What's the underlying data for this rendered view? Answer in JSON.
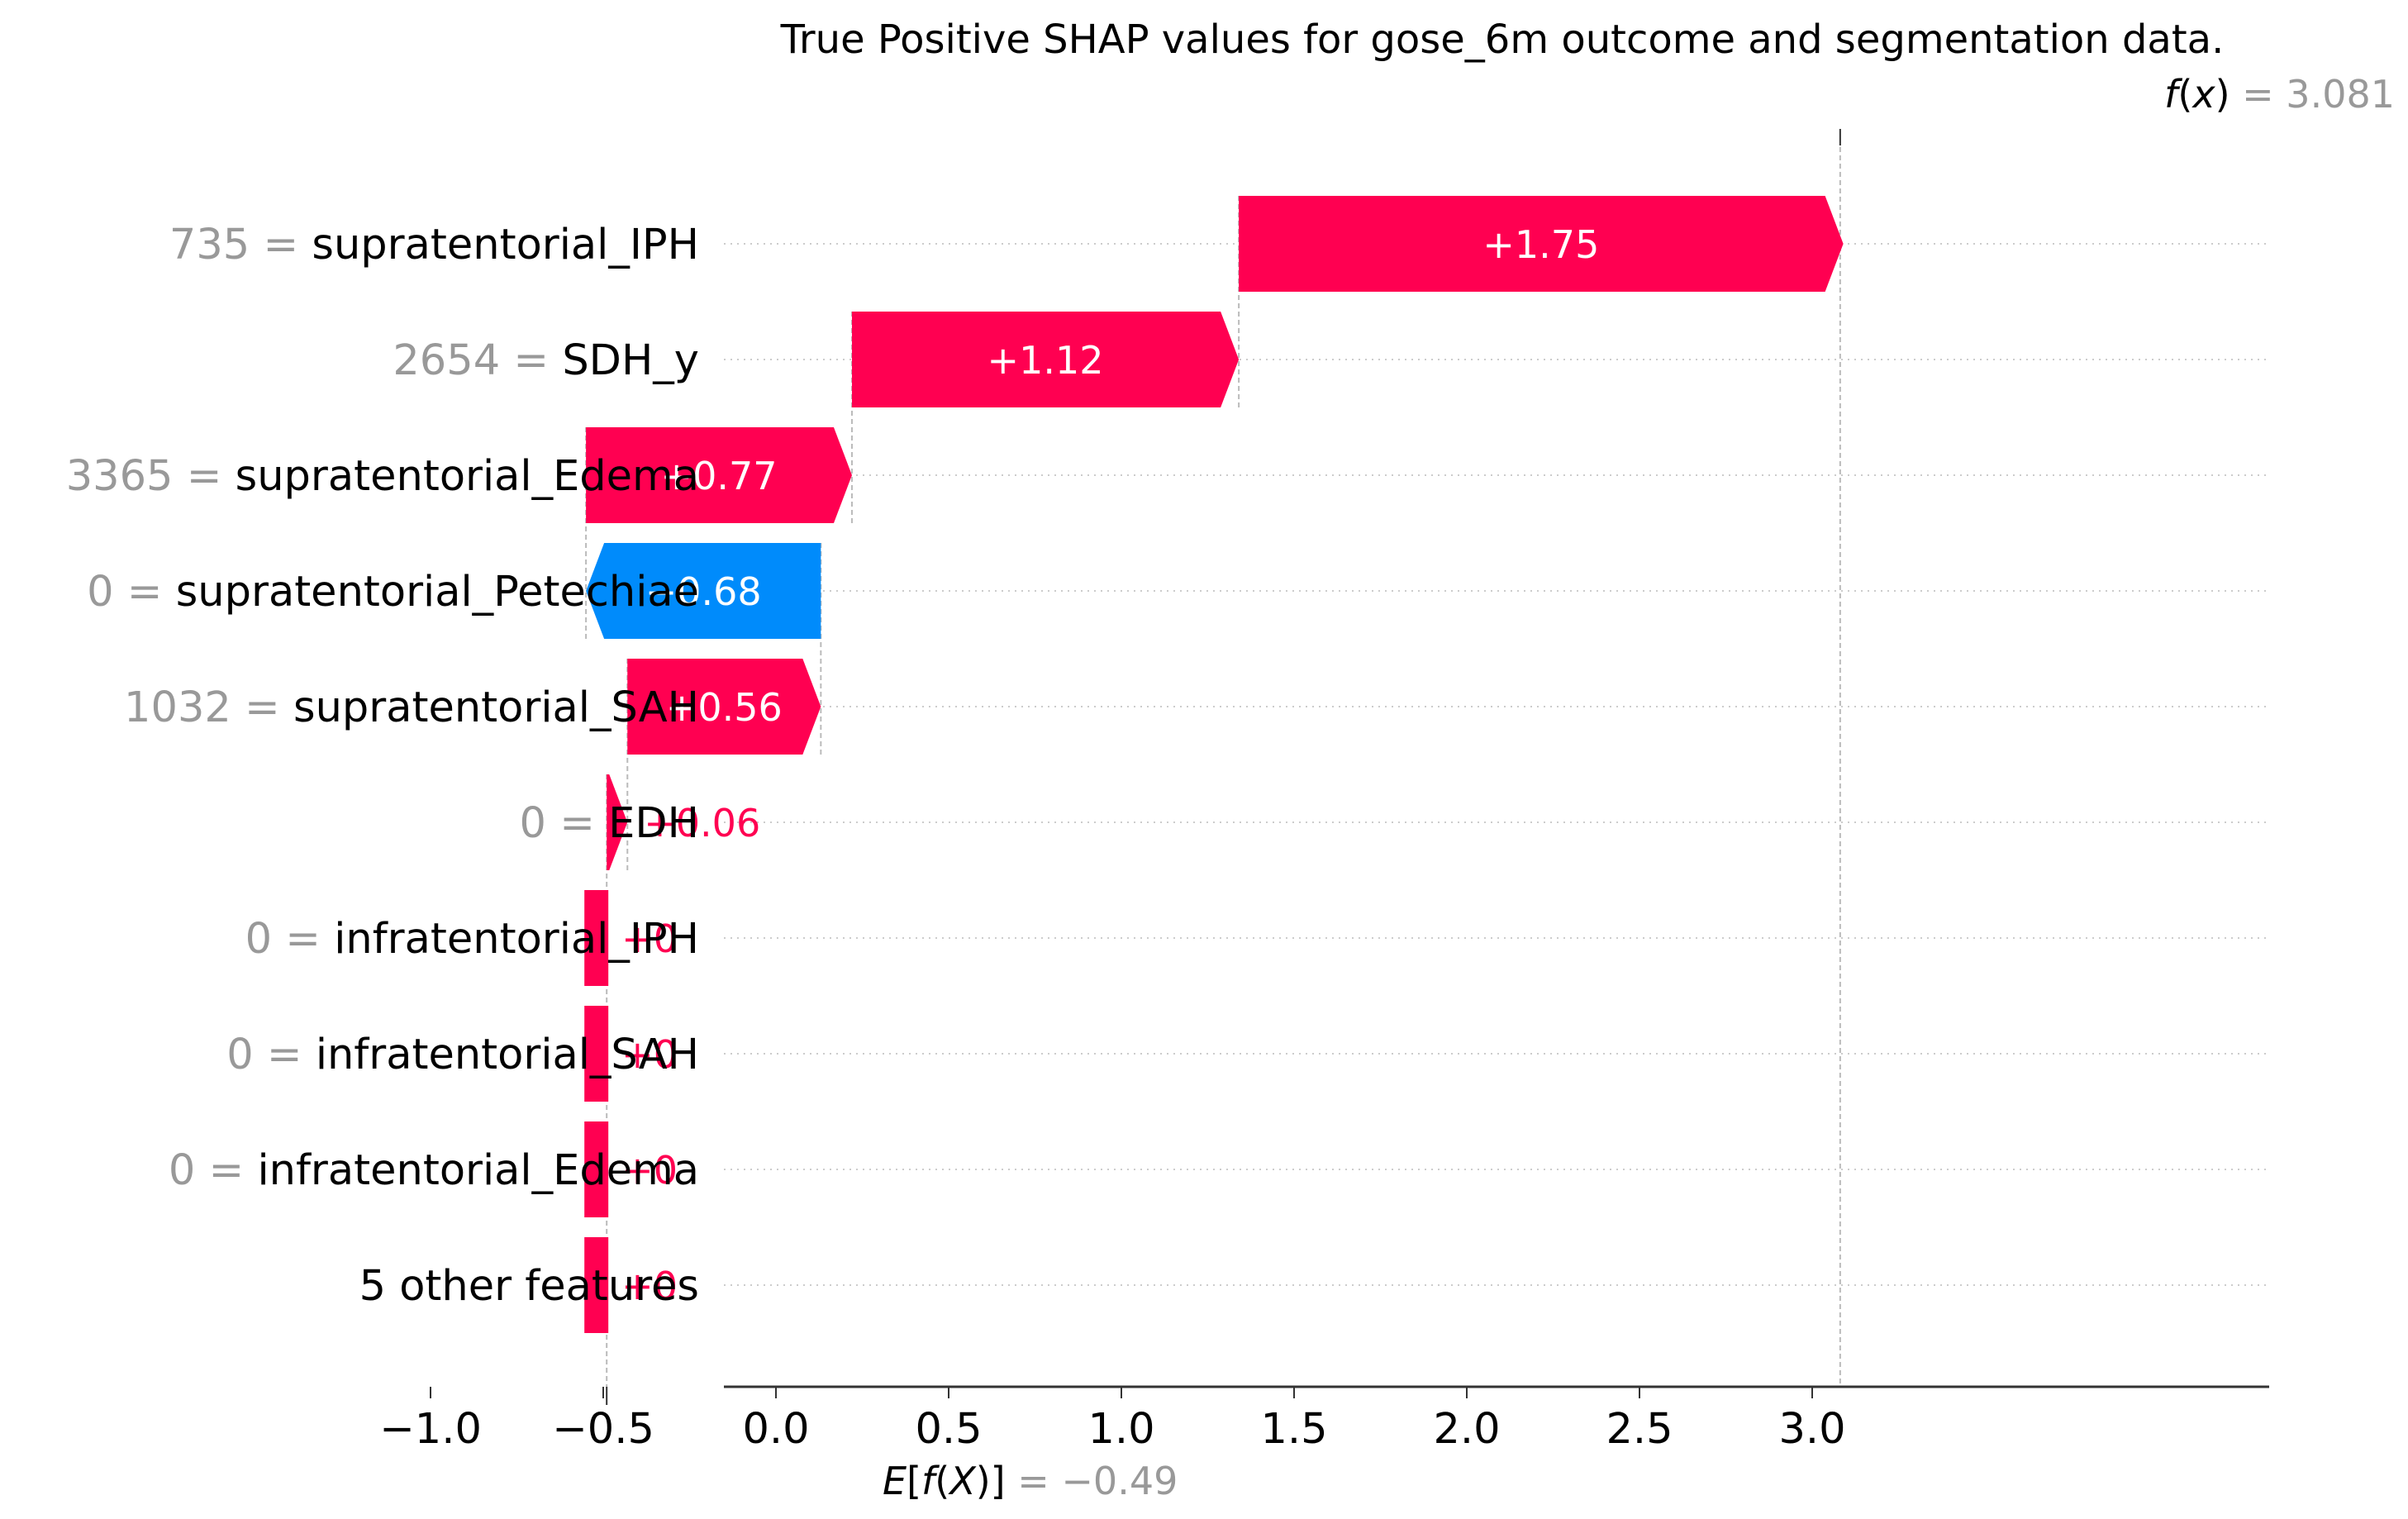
{
  "chart_data": {
    "type": "waterfall",
    "title": "True Positive SHAP values for gose_6m outcome and segmentation data.",
    "base_value": -0.49,
    "base_label_text": "= −0.49",
    "output_value": 3.081,
    "output_label_text": "= 3.081",
    "xlim": [
      -1.15,
      3.3
    ],
    "xticks": [
      -1.0,
      -0.5,
      0.0,
      0.5,
      1.0,
      1.5,
      2.0,
      2.5,
      3.0
    ],
    "xtick_labels": [
      "−1.0",
      "−0.5",
      "0.0",
      "0.5",
      "1.0",
      "1.5",
      "2.0",
      "2.5",
      "3.0"
    ],
    "grid": "horizontal dotted lines per feature row",
    "positive_color": "#ff0051",
    "negative_color": "#008bfb",
    "feature_value_color": "#999999",
    "features": [
      {
        "value_text": "735 =",
        "name": "supratentorial_IPH",
        "shap": 1.75,
        "label": "+1.75"
      },
      {
        "value_text": "2654 =",
        "name": "SDH_y",
        "shap": 1.12,
        "label": "+1.12"
      },
      {
        "value_text": "3365 =",
        "name": "supratentorial_Edema",
        "shap": 0.77,
        "label": "+0.77"
      },
      {
        "value_text": "0 =",
        "name": "supratentorial_Petechiae",
        "shap": -0.68,
        "label": "−0.68"
      },
      {
        "value_text": "1032 =",
        "name": "supratentorial_SAH",
        "shap": 0.56,
        "label": "+0.56"
      },
      {
        "value_text": "0 =",
        "name": "EDH",
        "shap": 0.06,
        "label": "+0.06"
      },
      {
        "value_text": "0 =",
        "name": "infratentorial_IPH",
        "shap": 0.0,
        "label": "+0"
      },
      {
        "value_text": "0 =",
        "name": "infratentorial_SAH",
        "shap": 0.0,
        "label": "+0"
      },
      {
        "value_text": "0 =",
        "name": "infratentorial_Edema",
        "shap": 0.0,
        "label": "+0"
      },
      {
        "value_text": "",
        "name": "5 other features",
        "shap": 0.0,
        "label": "+0"
      }
    ]
  }
}
